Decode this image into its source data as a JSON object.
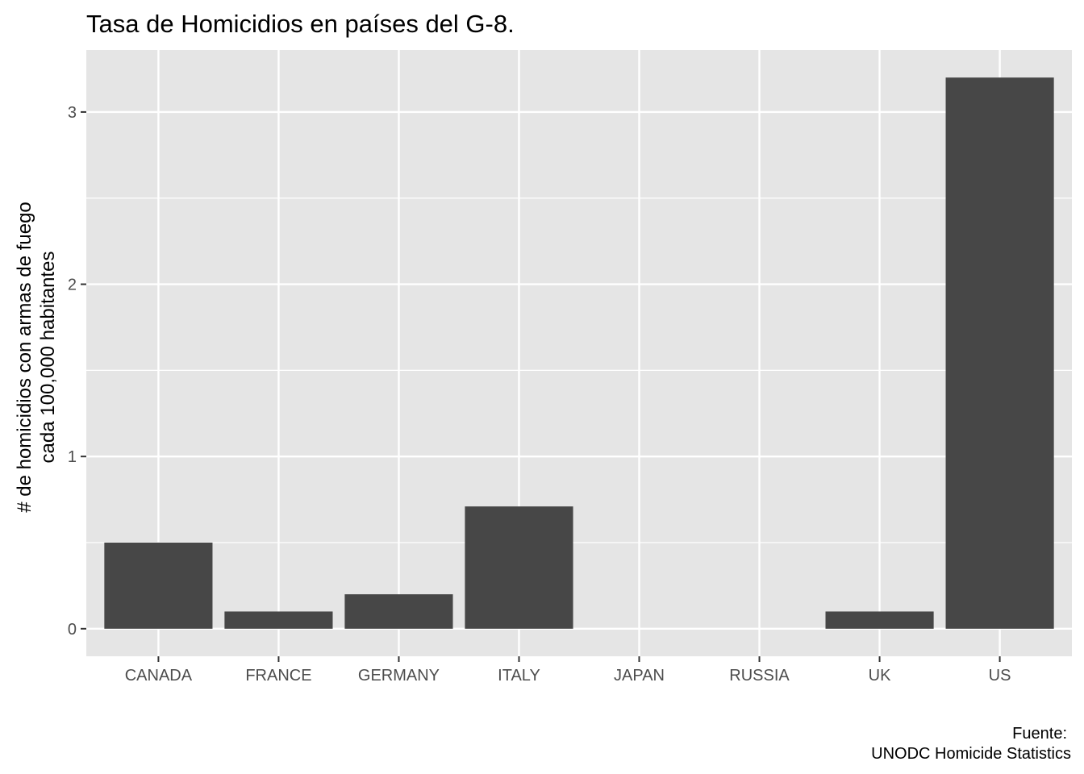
{
  "chart_data": {
    "type": "bar",
    "title": "Tasa de Homicidios en países del G-8.",
    "ylabel_lines": [
      "# de homicidios con armas de fuego",
      "cada 100,000 habitantes"
    ],
    "xlabel": "",
    "categories": [
      "CANADA",
      "FRANCE",
      "GERMANY",
      "ITALY",
      "JAPAN",
      "RUSSIA",
      "UK",
      "US"
    ],
    "values": [
      0.5,
      0.1,
      0.2,
      0.71,
      0.0,
      0.0,
      0.1,
      3.2
    ],
    "ylim": [
      -0.16,
      3.36
    ],
    "yticks": [
      0,
      1,
      2,
      3
    ],
    "caption_lines": [
      "Fuente:",
      "UNODC Homicide Statistics"
    ],
    "grid": true,
    "colors": {
      "panel_background": "#e5e5e5",
      "grid_line": "#ffffff",
      "bar_fill": "#474747",
      "tick_mark": "#333333"
    }
  }
}
